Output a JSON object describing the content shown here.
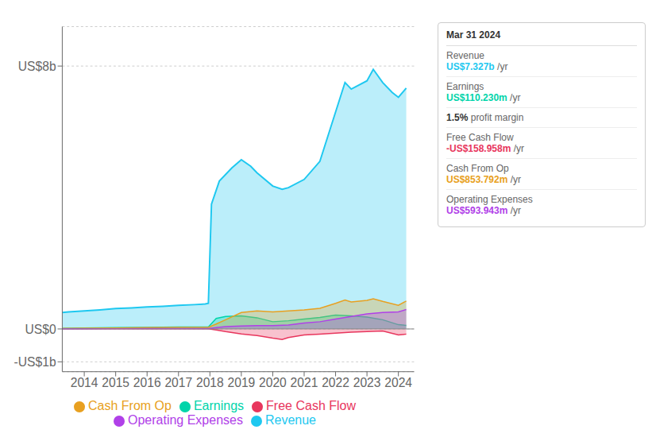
{
  "chart_data": {
    "type": "area",
    "xlim": [
      2013.3,
      2024.5
    ],
    "xticks": [
      2014,
      2015,
      2016,
      2017,
      2018,
      2019,
      2020,
      2021,
      2022,
      2023,
      2024
    ],
    "ylim": [
      -1.3,
      9.2
    ],
    "yticks": [
      {
        "value": -1,
        "label": "-US$1b"
      },
      {
        "value": 0,
        "label": "US$0"
      },
      {
        "value": 8,
        "label": "US$8b"
      }
    ],
    "grid": true,
    "legend": "bottom",
    "series": [
      {
        "name": "Revenue",
        "color": "#1ec8f0",
        "x": [
          2013.3,
          2013.5,
          2014.0,
          2014.5,
          2015.0,
          2015.5,
          2016.0,
          2016.5,
          2017.0,
          2017.5,
          2017.85,
          2017.95,
          2018.05,
          2018.3,
          2018.7,
          2019.0,
          2019.3,
          2019.5,
          2020.0,
          2020.3,
          2020.5,
          2021.0,
          2021.5,
          2022.0,
          2022.3,
          2022.5,
          2023.0,
          2023.2,
          2023.5,
          2023.8,
          2024.0,
          2024.25
        ],
        "values": [
          0.5,
          0.52,
          0.55,
          0.58,
          0.62,
          0.64,
          0.67,
          0.69,
          0.72,
          0.74,
          0.76,
          0.78,
          3.8,
          4.5,
          4.9,
          5.15,
          4.95,
          4.75,
          4.35,
          4.25,
          4.3,
          4.55,
          5.1,
          6.6,
          7.5,
          7.3,
          7.55,
          7.9,
          7.5,
          7.2,
          7.05,
          7.33
        ]
      },
      {
        "name": "Earnings",
        "color": "#00d4aa",
        "x": [
          2013.3,
          2014.0,
          2015.0,
          2016.0,
          2017.0,
          2017.85,
          2017.95,
          2018.2,
          2018.5,
          2019.0,
          2019.5,
          2020.0,
          2020.5,
          2021.0,
          2021.5,
          2022.0,
          2022.5,
          2023.0,
          2023.5,
          2024.0,
          2024.25
        ],
        "values": [
          0.02,
          0.03,
          0.04,
          0.05,
          0.06,
          0.06,
          0.06,
          0.32,
          0.38,
          0.4,
          0.34,
          0.22,
          0.25,
          0.3,
          0.35,
          0.42,
          0.4,
          0.36,
          0.28,
          0.13,
          0.11
        ]
      },
      {
        "name": "Free Cash Flow",
        "color": "#e8365d",
        "x": [
          2013.3,
          2014.0,
          2015.0,
          2016.0,
          2017.0,
          2017.85,
          2017.95,
          2018.2,
          2018.5,
          2019.0,
          2019.3,
          2019.5,
          2020.0,
          2020.3,
          2020.5,
          2021.0,
          2021.5,
          2022.0,
          2022.5,
          2023.0,
          2023.5,
          2024.0,
          2024.25
        ],
        "values": [
          0.005,
          0.005,
          0.005,
          0.005,
          0.005,
          0.005,
          0.005,
          -0.03,
          -0.08,
          -0.15,
          -0.18,
          -0.2,
          -0.28,
          -0.32,
          -0.26,
          -0.18,
          -0.16,
          -0.13,
          -0.1,
          -0.08,
          -0.06,
          -0.18,
          -0.16
        ]
      },
      {
        "name": "Cash From Op",
        "color": "#e8a020",
        "x": [
          2013.3,
          2014.0,
          2015.0,
          2016.0,
          2017.0,
          2017.85,
          2017.95,
          2018.2,
          2018.5,
          2019.0,
          2019.5,
          2020.0,
          2020.5,
          2021.0,
          2021.5,
          2022.0,
          2022.3,
          2022.5,
          2023.0,
          2023.2,
          2023.5,
          2024.0,
          2024.25
        ],
        "values": [
          0.02,
          0.025,
          0.03,
          0.04,
          0.05,
          0.05,
          0.05,
          0.15,
          0.28,
          0.5,
          0.55,
          0.52,
          0.55,
          0.58,
          0.63,
          0.78,
          0.88,
          0.82,
          0.87,
          0.92,
          0.84,
          0.72,
          0.85
        ]
      },
      {
        "name": "Operating Expenses",
        "color": "#b040e8",
        "x": [
          2013.3,
          2014.0,
          2015.0,
          2016.0,
          2017.0,
          2017.85,
          2017.95,
          2018.2,
          2018.5,
          2019.0,
          2019.5,
          2020.0,
          2020.5,
          2021.0,
          2021.5,
          2022.0,
          2022.5,
          2023.0,
          2023.5,
          2024.0,
          2024.25
        ],
        "values": [
          0.004,
          0.006,
          0.008,
          0.01,
          0.012,
          0.012,
          0.012,
          0.04,
          0.07,
          0.09,
          0.1,
          0.1,
          0.12,
          0.18,
          0.22,
          0.3,
          0.38,
          0.46,
          0.5,
          0.52,
          0.59
        ]
      }
    ],
    "annotations": [
      {
        "title": "Mar 31 2024",
        "rows": [
          {
            "label": "Revenue",
            "value": "US$7.327b",
            "unit": "/yr",
            "color": "#1ec8f0"
          },
          {
            "label": "Earnings",
            "value": "US$110.230m",
            "unit": "/yr",
            "color": "#00d4aa"
          },
          {
            "value": "1.5%",
            "unit": "profit margin"
          },
          {
            "label": "Free Cash Flow",
            "value": "-US$158.958m",
            "unit": "/yr",
            "color": "#e8365d"
          },
          {
            "label": "Cash From Op",
            "value": "US$853.792m",
            "unit": "/yr",
            "color": "#e8a020"
          },
          {
            "label": "Operating Expenses",
            "value": "US$593.943m",
            "unit": "/yr",
            "color": "#b040e8"
          }
        ]
      }
    ]
  }
}
